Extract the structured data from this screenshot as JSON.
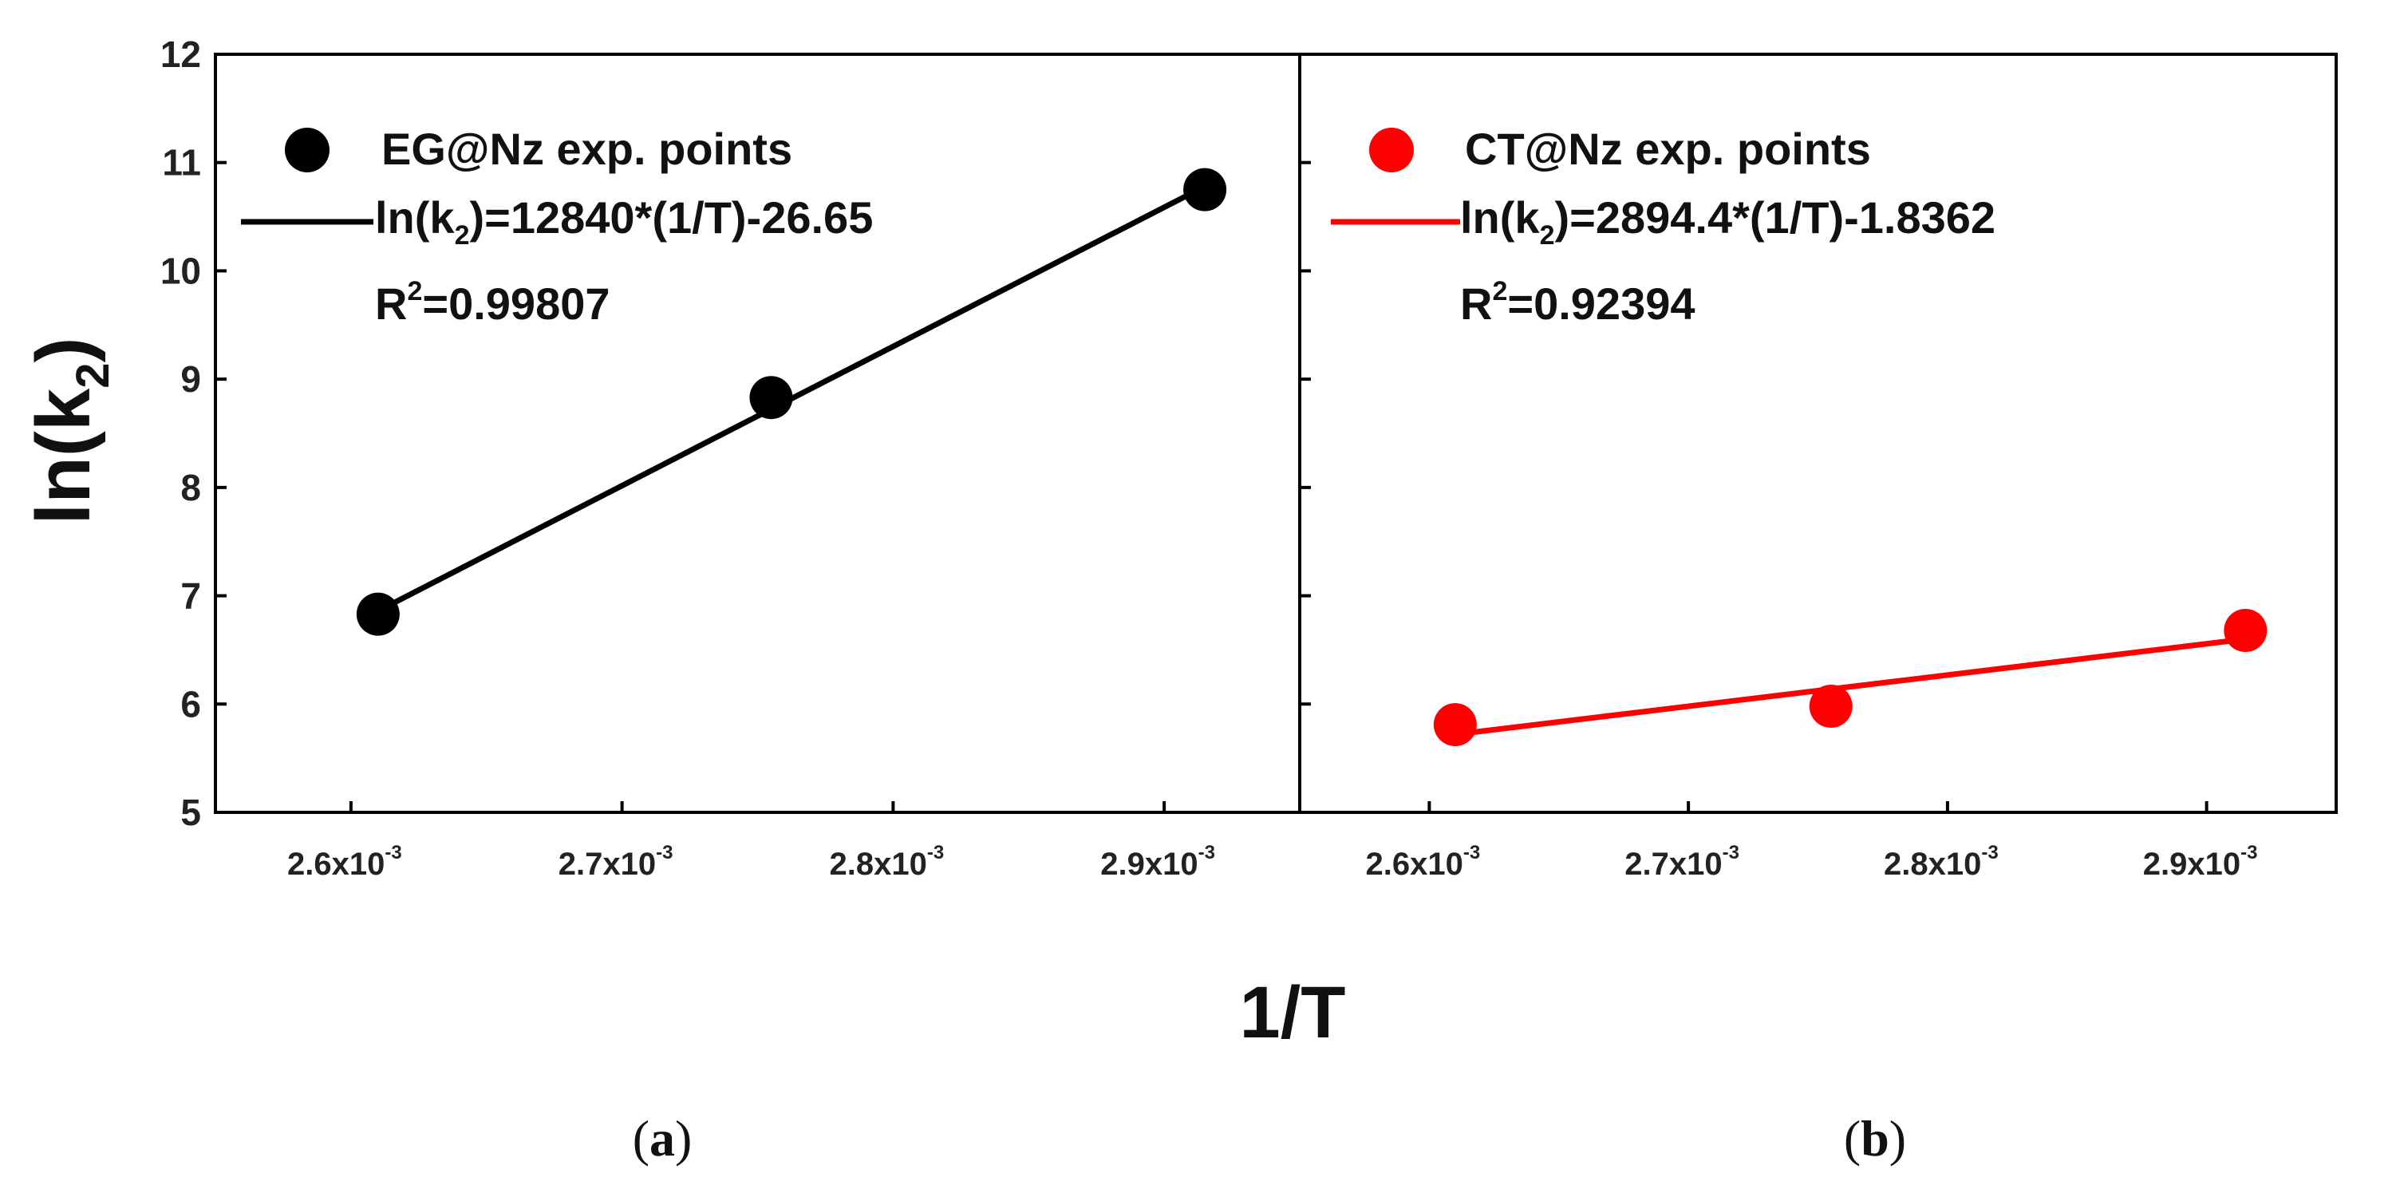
{
  "figure": {
    "ylabel_main": "ln(k",
    "ylabel_sub": "2",
    "ylabel_close": ")",
    "xlabel": "1/T",
    "xtick_mantissas": [
      "2.6x10",
      "2.7x10",
      "2.8x10",
      "2.9x10"
    ],
    "xtick_exponent": "-3",
    "yticks": [
      "5",
      "6",
      "7",
      "8",
      "9",
      "10",
      "11",
      "12"
    ]
  },
  "panels": {
    "a": {
      "caption_open": "(",
      "caption_letter": "a",
      "caption_close": ")",
      "legend_points": "EG@Nz exp. points",
      "legend_fit_prefix": "ln(k",
      "legend_fit_sub": "2",
      "legend_fit_suffix": ")=12840*(1/T)-26.65",
      "r2_prefix": "R",
      "r2_sup": "2",
      "r2_suffix": "=0.99807"
    },
    "b": {
      "caption_open": "(",
      "caption_letter": "b",
      "caption_close": ")",
      "legend_points": "CT@Nz exp. points",
      "legend_fit_prefix": "ln(k",
      "legend_fit_sub": "2",
      "legend_fit_suffix": ")=2894.4*(1/T)-1.8362",
      "r2_prefix": "R",
      "r2_sup": "2",
      "r2_suffix": "=0.92394"
    }
  },
  "chart_data": [
    {
      "type": "scatter",
      "xlabel": "1/T",
      "ylabel": "ln(k2)",
      "xlim": [
        0.00255,
        0.00295
      ],
      "ylim": [
        5,
        12
      ],
      "xticks": [
        0.0026,
        0.0027,
        0.0028,
        0.0029
      ],
      "yticks": [
        5,
        6,
        7,
        8,
        9,
        10,
        11,
        12
      ],
      "legend": "top-left",
      "series": [
        {
          "name": "EG@Nz exp. points",
          "kind": "points",
          "color": "#000000",
          "x": [
            0.00261,
            0.002755,
            0.002915
          ],
          "y": [
            6.83,
            8.83,
            10.75
          ]
        },
        {
          "name": "ln(k2)=12840*(1/T)-26.65",
          "kind": "fit-line",
          "color": "#000000",
          "x": [
            0.00261,
            0.002915
          ],
          "y": [
            6.86,
            10.78
          ]
        }
      ],
      "annotations": [
        "R2=0.99807"
      ]
    },
    {
      "type": "scatter",
      "xlabel": "1/T",
      "ylabel": "ln(k2)",
      "xlim": [
        0.00255,
        0.00295
      ],
      "ylim": [
        5,
        12
      ],
      "xticks": [
        0.0026,
        0.0027,
        0.0028,
        0.0029
      ],
      "yticks": [
        5,
        6,
        7,
        8,
        9,
        10,
        11,
        12
      ],
      "legend": "top-left",
      "series": [
        {
          "name": "CT@Nz exp. points",
          "kind": "points",
          "color": "#ff0000",
          "x": [
            0.00261,
            0.002755,
            0.002915
          ],
          "y": [
            5.81,
            5.98,
            6.68
          ]
        },
        {
          "name": "ln(k2)=2894.4*(1/T)-1.8362",
          "kind": "fit-line",
          "color": "#ff0000",
          "x": [
            0.00261,
            0.002915
          ],
          "y": [
            5.72,
            6.6
          ]
        }
      ],
      "annotations": [
        "R2=0.92394"
      ]
    }
  ]
}
